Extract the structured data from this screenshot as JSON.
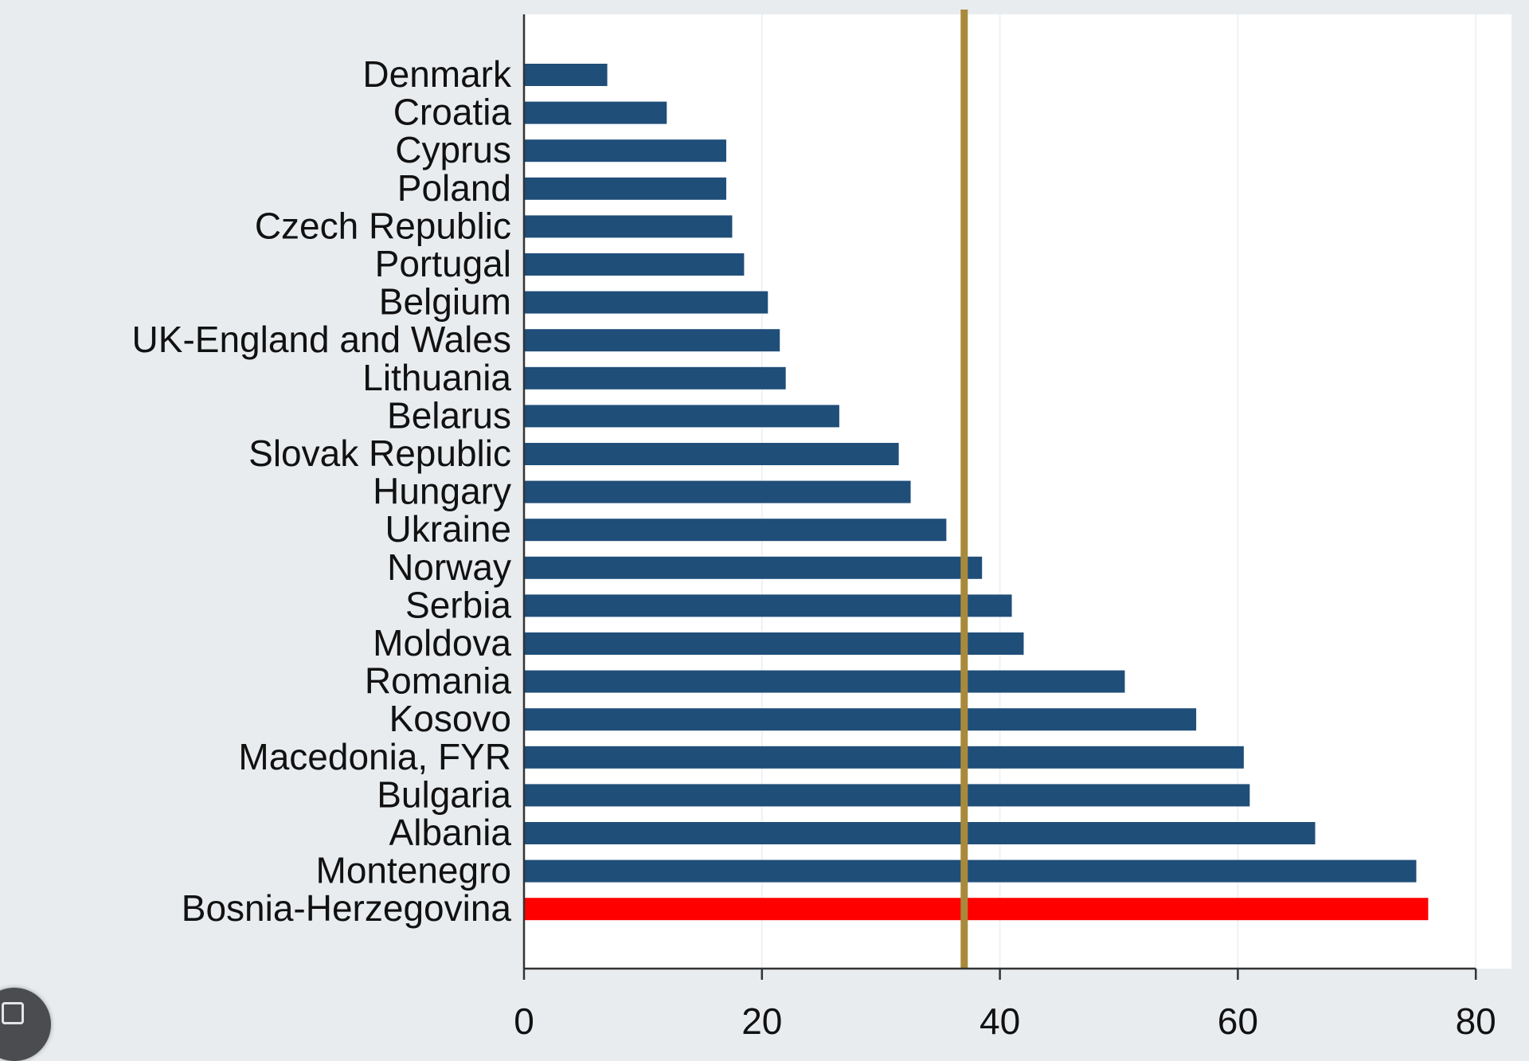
{
  "chart_data": {
    "type": "bar",
    "orientation": "horizontal",
    "categories": [
      "Denmark",
      "Croatia",
      "Cyprus",
      "Poland",
      "Czech Republic",
      "Portugal",
      "Belgium",
      "UK-England and Wales",
      "Lithuania",
      "Belarus",
      "Slovak Republic",
      "Hungary",
      "Ukraine",
      "Norway",
      "Serbia",
      "Moldova",
      "Romania",
      "Kosovo",
      "Macedonia, FYR",
      "Bulgaria",
      "Albania",
      "Montenegro",
      "Bosnia-Herzegovina"
    ],
    "values": [
      7,
      12,
      17,
      17,
      17.5,
      18.5,
      20.5,
      21.5,
      22,
      26.5,
      31.5,
      32.5,
      35.5,
      38.5,
      41,
      42,
      50.5,
      56.5,
      60.5,
      61,
      66.5,
      75,
      76
    ],
    "highlight_index": 22,
    "reference_line": 37,
    "xlim": [
      0,
      83
    ],
    "xticks": [
      0,
      20,
      40,
      60,
      80
    ],
    "xtick_labels": [
      "0",
      "20",
      "40",
      "60",
      "80"
    ],
    "title": "",
    "xlabel": "",
    "ylabel": "",
    "grid": "vertical",
    "legend": "none",
    "colors": {
      "bar": "#1f4e79",
      "highlight_bar": "#ff0000",
      "reference_line": "#a98a3c",
      "plot_background": "#ffffff",
      "page_background": "#e9ecef",
      "axis": "#333333",
      "grid": "#eef2f5"
    }
  },
  "ui": {
    "corner_icon": "copy-icon"
  }
}
